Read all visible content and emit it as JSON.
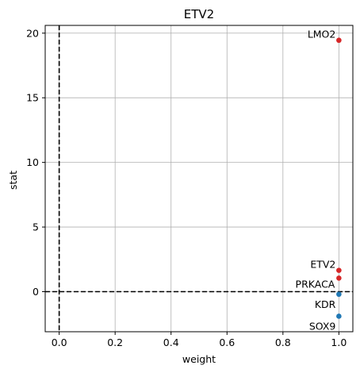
{
  "chart_data": {
    "type": "scatter",
    "title": "ETV2",
    "xlabel": "weight",
    "ylabel": "stat",
    "xlim": [
      -0.05,
      1.05
    ],
    "ylim": [
      -3.1,
      20.6
    ],
    "xticks": [
      0.0,
      0.2,
      0.4,
      0.6,
      0.8,
      1.0
    ],
    "xtick_labels": [
      "0.0",
      "0.2",
      "0.4",
      "0.6",
      "0.8",
      "1.0"
    ],
    "yticks": [
      0,
      5,
      10,
      15,
      20
    ],
    "ytick_labels": [
      "0",
      "5",
      "10",
      "15",
      "20"
    ],
    "grid": true,
    "reference_lines": {
      "x": 0,
      "y": 0,
      "style": "dashed",
      "color": "#000000"
    },
    "colors": {
      "positive": "#d62728",
      "negative": "#1f77b4"
    },
    "points": [
      {
        "label": "LMO2",
        "x": 1.0,
        "y": 19.45,
        "color": "#d62728"
      },
      {
        "label": "ETV2",
        "x": 1.0,
        "y": 1.65,
        "color": "#d62728"
      },
      {
        "label": "PRKACA",
        "x": 1.0,
        "y": 1.05,
        "color": "#d62728"
      },
      {
        "label": "KDR",
        "x": 1.0,
        "y": -0.2,
        "color": "#1f77b4"
      },
      {
        "label": "SOX9",
        "x": 1.0,
        "y": -1.9,
        "color": "#1f77b4"
      }
    ]
  }
}
